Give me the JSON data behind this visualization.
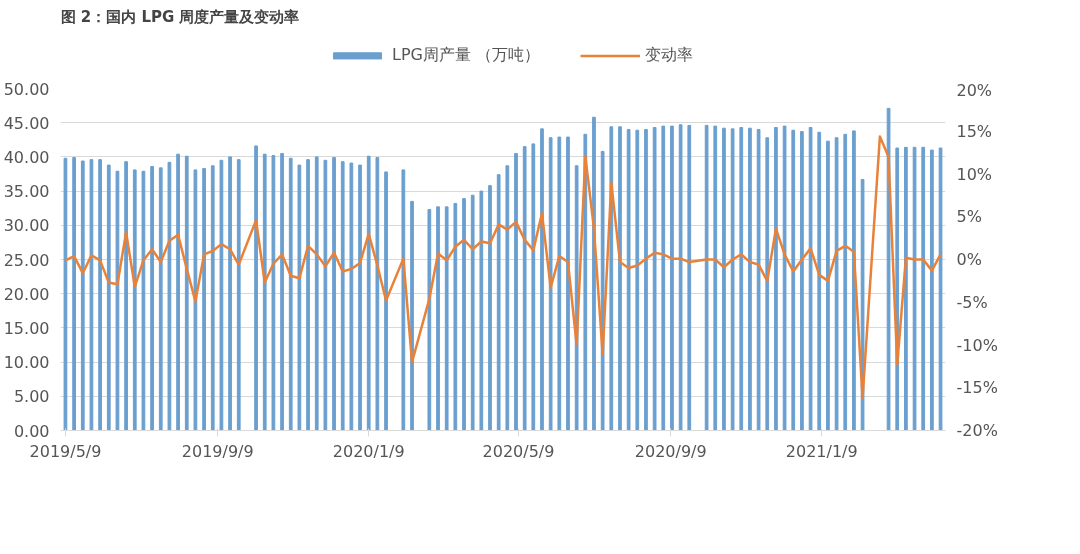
{
  "chart_data": {
    "type": "bar",
    "title": "图 2：国内 LPG 周度产量及变动率",
    "x": [
      "2019-05-09",
      "2019-05-16",
      "2019-05-23",
      "2019-05-30",
      "2019-06-06",
      "2019-06-13",
      "2019-06-20",
      "2019-06-27",
      "2019-07-04",
      "2019-07-11",
      "2019-07-18",
      "2019-07-25",
      "2019-08-01",
      "2019-08-08",
      "2019-08-15",
      "2019-08-22",
      "2019-08-29",
      "2019-09-05",
      "2019-09-12",
      "2019-09-19",
      "2019-09-26",
      "2019-10-03",
      "2019-10-10",
      "2019-10-17",
      "2019-10-24",
      "2019-10-31",
      "2019-11-07",
      "2019-11-14",
      "2019-11-21",
      "2019-11-28",
      "2019-12-05",
      "2019-12-12",
      "2019-12-19",
      "2019-12-26",
      "2020-01-02",
      "2020-01-09",
      "2020-01-16",
      "2020-01-23",
      "2020-01-30",
      "2020-02-06",
      "2020-02-13",
      "2020-02-20",
      "2020-02-27",
      "2020-03-05",
      "2020-03-12",
      "2020-03-19",
      "2020-03-26",
      "2020-04-02",
      "2020-04-09",
      "2020-04-16",
      "2020-04-23",
      "2020-04-30",
      "2020-05-07",
      "2020-05-14",
      "2020-05-21",
      "2020-05-28",
      "2020-06-04",
      "2020-06-11",
      "2020-06-18",
      "2020-06-25",
      "2020-07-02",
      "2020-07-09",
      "2020-07-16",
      "2020-07-23",
      "2020-07-30",
      "2020-08-06",
      "2020-08-13",
      "2020-08-20",
      "2020-08-27",
      "2020-09-03",
      "2020-09-10",
      "2020-09-17",
      "2020-09-24",
      "2020-10-01",
      "2020-10-08",
      "2020-10-15",
      "2020-10-22",
      "2020-10-29",
      "2020-11-05",
      "2020-11-12",
      "2020-11-19",
      "2020-11-26",
      "2020-12-03",
      "2020-12-10",
      "2020-12-17",
      "2020-12-24",
      "2020-12-31",
      "2021-01-07",
      "2021-01-14",
      "2021-01-21",
      "2021-01-28",
      "2021-02-04",
      "2021-02-11",
      "2021-02-18",
      "2021-02-25",
      "2021-03-04",
      "2021-03-11",
      "2021-03-18",
      "2021-03-25",
      "2021-04-01",
      "2021-04-08",
      "2021-04-15"
    ],
    "series": [
      {
        "name": "LPG周产量 （万吨）",
        "color": "#6a9fcf",
        "values": [
          39.8,
          39.9,
          39.4,
          39.6,
          39.6,
          38.8,
          37.9,
          39.3,
          38.1,
          37.9,
          38.6,
          38.4,
          39.2,
          40.4,
          40.1,
          38.1,
          38.3,
          38.7,
          39.5,
          40.0,
          39.6,
          null,
          41.6,
          40.4,
          40.2,
          40.5,
          39.8,
          38.8,
          39.6,
          40.0,
          39.5,
          39.9,
          39.3,
          39.1,
          38.8,
          40.1,
          39.9,
          37.8,
          null,
          38.1,
          33.5,
          null,
          32.3,
          32.7,
          32.7,
          33.2,
          33.9,
          34.4,
          35.0,
          35.8,
          37.4,
          38.7,
          40.5,
          41.5,
          41.9,
          44.1,
          42.8,
          42.9,
          42.9,
          38.7,
          43.3,
          45.8,
          40.8,
          44.4,
          44.4,
          44.0,
          43.9,
          44.0,
          44.3,
          44.5,
          44.5,
          44.7,
          44.6,
          null,
          44.6,
          44.5,
          44.2,
          44.1,
          44.3,
          44.2,
          44.0,
          42.8,
          44.3,
          44.5,
          43.9,
          43.7,
          44.3,
          43.6,
          42.3,
          42.8,
          43.3,
          43.8,
          36.7,
          null,
          null,
          47.1,
          41.3,
          41.4,
          41.4,
          41.4,
          41.0,
          41.3
        ]
      },
      {
        "name": "变动率",
        "type": "line",
        "axis": "y2",
        "color": "#e8823a",
        "x": [
          "2019-05-09",
          "2019-05-16",
          "2019-05-23",
          "2019-05-30",
          "2019-06-06",
          "2019-06-13",
          "2019-06-20",
          "2019-06-27",
          "2019-07-04",
          "2019-07-11",
          "2019-07-18",
          "2019-07-25",
          "2019-08-01",
          "2019-08-08",
          "2019-08-15",
          "2019-08-22",
          "2019-08-29",
          "2019-09-05",
          "2019-09-12",
          "2019-09-19",
          "2019-09-26",
          "2019-10-10",
          "2019-10-17",
          "2019-10-24",
          "2019-10-31",
          "2019-11-07",
          "2019-11-14",
          "2019-11-21",
          "2019-11-28",
          "2019-12-05",
          "2019-12-12",
          "2019-12-19",
          "2019-12-26",
          "2020-01-02",
          "2020-01-09",
          "2020-01-16",
          "2020-01-23",
          "2020-02-06",
          "2020-02-13",
          "2020-02-27",
          "2020-03-05",
          "2020-03-12",
          "2020-03-19",
          "2020-03-26",
          "2020-04-02",
          "2020-04-09",
          "2020-04-16",
          "2020-04-23",
          "2020-04-30",
          "2020-05-07",
          "2020-05-14",
          "2020-05-21",
          "2020-05-28",
          "2020-06-04",
          "2020-06-11",
          "2020-06-18",
          "2020-06-25",
          "2020-07-02",
          "2020-07-09",
          "2020-07-16",
          "2020-07-23",
          "2020-07-30",
          "2020-08-06",
          "2020-08-13",
          "2020-08-20",
          "2020-08-27",
          "2020-09-03",
          "2020-09-10",
          "2020-09-17",
          "2020-09-24",
          "2020-10-08",
          "2020-10-15",
          "2020-10-22",
          "2020-10-29",
          "2020-11-05",
          "2020-11-12",
          "2020-11-19",
          "2020-11-26",
          "2020-12-03",
          "2020-12-10",
          "2020-12-17",
          "2020-12-24",
          "2020-12-31",
          "2021-01-07",
          "2021-01-14",
          "2021-01-21",
          "2021-01-28",
          "2021-02-04",
          "2021-02-11",
          "2021-02-25",
          "2021-03-04",
          "2021-03-11",
          "2021-03-18",
          "2021-03-25",
          "2021-04-01",
          "2021-04-08",
          "2021-04-15"
        ],
        "values": [
          -0.1,
          0.4,
          -1.6,
          0.5,
          -0.1,
          -2.7,
          -2.9,
          3.2,
          -3.2,
          -0.1,
          1.2,
          -0.3,
          2.2,
          2.9,
          -1.1,
          -4.9,
          0.6,
          1.0,
          1.8,
          1.2,
          -0.6,
          4.6,
          -2.7,
          -0.5,
          0.6,
          -1.9,
          -2.2,
          1.6,
          0.6,
          -0.8,
          0.8,
          -1.4,
          -1.1,
          -0.4,
          3.0,
          -0.7,
          -4.8,
          0.1,
          -12.0,
          -4.6,
          0.7,
          -0.1,
          1.5,
          2.3,
          1.2,
          2.1,
          1.9,
          4.1,
          3.5,
          4.4,
          2.3,
          1.1,
          5.4,
          -3.3,
          0.4,
          -0.3,
          -10.0,
          12.1,
          3.6,
          -11.1,
          9.0,
          -0.3,
          -1.0,
          -0.7,
          0.1,
          0.8,
          0.6,
          0.1,
          0.1,
          -0.3,
          0.0,
          0.0,
          -0.9,
          0.0,
          0.6,
          -0.3,
          -0.6,
          -2.5,
          3.6,
          0.6,
          -1.4,
          0.0,
          1.3,
          -1.8,
          -2.5,
          1.0,
          1.6,
          0.9,
          -16.2,
          14.4,
          12.0,
          -12.3,
          0.2,
          0.0,
          0.0,
          -1.3,
          0.6
        ]
      }
    ],
    "xlim": [
      "2019-05-05",
      "2021-04-19"
    ],
    "xticks": [
      {
        "value": "2019-05-09",
        "label": "2019/5/9"
      },
      {
        "value": "2019-09-09",
        "label": "2019/9/9"
      },
      {
        "value": "2020-01-09",
        "label": "2020/1/9"
      },
      {
        "value": "2020-05-09",
        "label": "2020/5/9"
      },
      {
        "value": "2020-09-09",
        "label": "2020/9/9"
      },
      {
        "value": "2021-01-09",
        "label": "2021/1/9"
      }
    ],
    "ylim": [
      0,
      50
    ],
    "yticks": [
      {
        "value": 0,
        "label": "0.00"
      },
      {
        "value": 5,
        "label": "5.00"
      },
      {
        "value": 10,
        "label": "10.00"
      },
      {
        "value": 15,
        "label": "15.00"
      },
      {
        "value": 20,
        "label": "20.00"
      },
      {
        "value": 25,
        "label": "25.00"
      },
      {
        "value": 30,
        "label": "30.00"
      },
      {
        "value": 35,
        "label": "35.00"
      },
      {
        "value": 40,
        "label": "40.00"
      },
      {
        "value": 45,
        "label": "45.00"
      },
      {
        "value": 50,
        "label": "50.00"
      }
    ],
    "y2lim": [
      -20,
      20
    ],
    "y2ticks": [
      {
        "value": -20,
        "label": "-20%"
      },
      {
        "value": -15,
        "label": "-15%"
      },
      {
        "value": -10,
        "label": "-10%"
      },
      {
        "value": -5,
        "label": "-5%"
      },
      {
        "value": 0,
        "label": "0%"
      },
      {
        "value": 5,
        "label": "5%"
      },
      {
        "value": 10,
        "label": "10%"
      },
      {
        "value": 15,
        "label": "15%"
      },
      {
        "value": 20,
        "label": "20%"
      }
    ],
    "grid": "y",
    "legend": "top",
    "marker": "none",
    "line_style": "solid"
  }
}
